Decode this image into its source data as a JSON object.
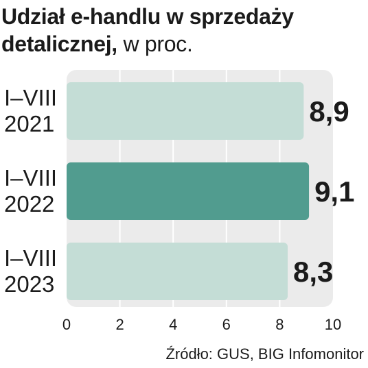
{
  "title": {
    "bold": "Udział e-handlu w sprzedaży detalicznej,",
    "light": "w proc."
  },
  "chart_data": {
    "type": "bar",
    "orientation": "horizontal",
    "categories": [
      [
        "I–VIII",
        "2021"
      ],
      [
        "I–VIII",
        "2022"
      ],
      [
        "I–VIII",
        "2023"
      ]
    ],
    "values": [
      8.9,
      9.1,
      8.3
    ],
    "value_labels": [
      "8,9",
      "9,1",
      "8,3"
    ],
    "highlight_index": 1,
    "xlim": [
      0,
      10
    ],
    "xticks": [
      0,
      2,
      4,
      6,
      8,
      10
    ],
    "grid": true,
    "xlabel": "",
    "ylabel": "",
    "colors": {
      "bar": "#c4ddd6",
      "bar_highlight": "#519c8f",
      "plot_bg": "#ebebeb",
      "grid": "#ffffff",
      "text": "#1b1b1b"
    }
  },
  "source": "Źródło: GUS, BIG Infomonitor"
}
